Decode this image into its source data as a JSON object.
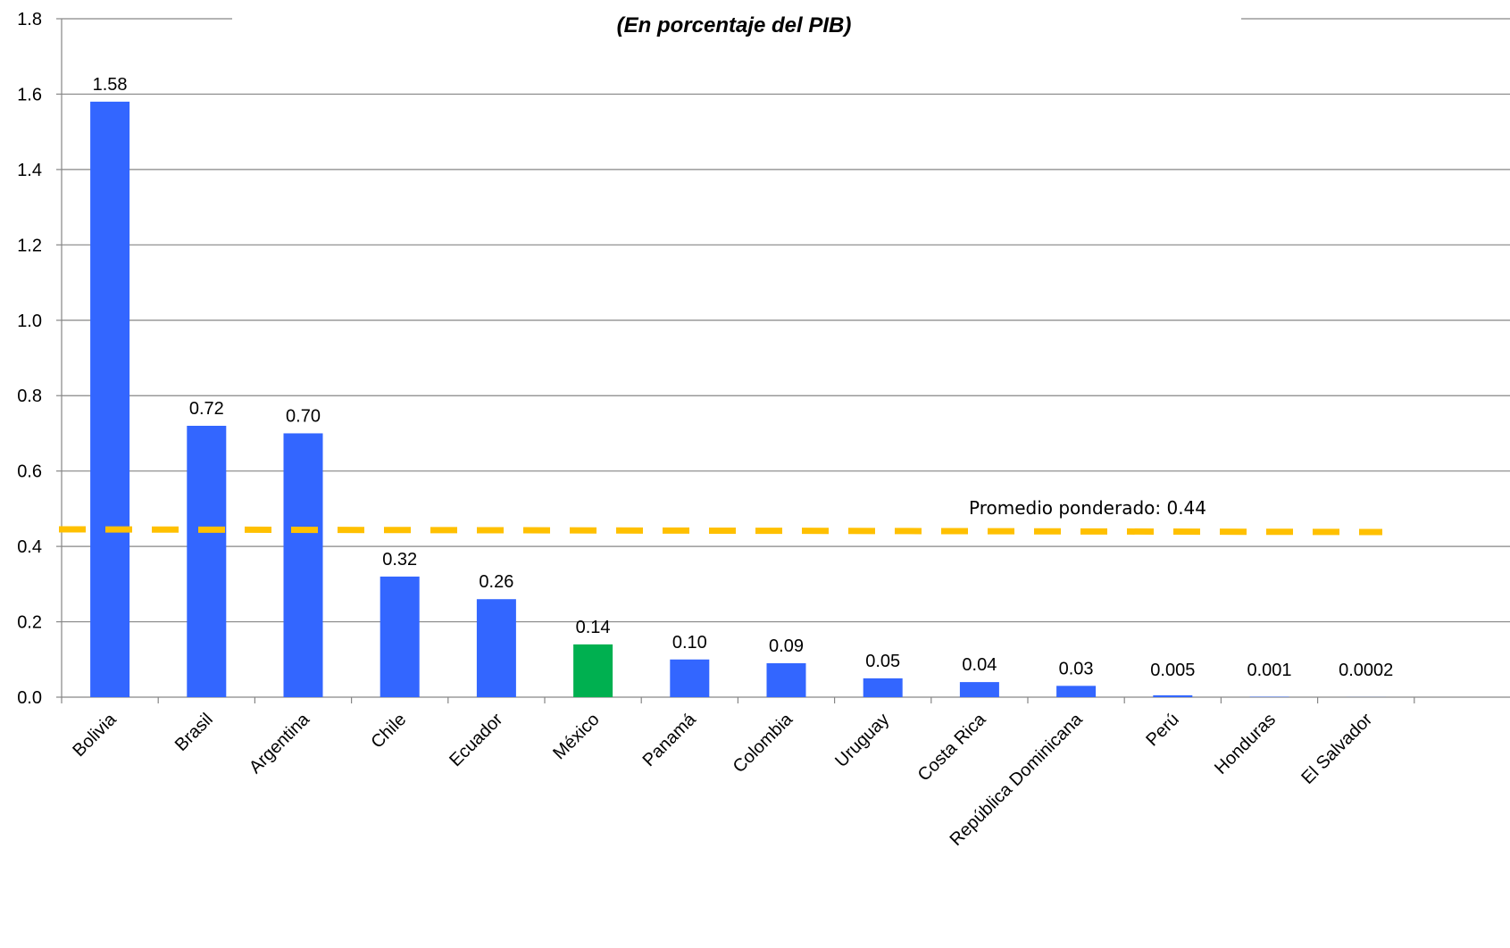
{
  "chart_data": {
    "type": "bar",
    "title": "(En porcentaje del PIB)",
    "xlabel": "",
    "ylabel": "",
    "ylim": [
      0,
      1.8
    ],
    "yticks": [
      "0.0",
      "0.2",
      "0.4",
      "0.6",
      "0.8",
      "1.0",
      "1.2",
      "1.4",
      "1.6",
      "1.8"
    ],
    "grid": true,
    "categories": [
      "Bolivia",
      "Brasil",
      "Argentina",
      "Chile",
      "Ecuador",
      "México",
      "Panamá",
      "Colombia",
      "Uruguay",
      "Costa Rica",
      "República Dominicana",
      "Perú",
      "Honduras",
      "El Salvador"
    ],
    "values": [
      1.58,
      0.72,
      0.7,
      0.32,
      0.26,
      0.14,
      0.1,
      0.09,
      0.05,
      0.04,
      0.03,
      0.005,
      0.001,
      0.0002
    ],
    "value_labels": [
      "1.58",
      "0.72",
      "0.70",
      "0.32",
      "0.26",
      "0.14",
      "0.10",
      "0.09",
      "0.05",
      "0.04",
      "0.03",
      "0.005",
      "0.001",
      "0.0002"
    ],
    "bar_colors": [
      "#3366ff",
      "#3366ff",
      "#3366ff",
      "#3366ff",
      "#3366ff",
      "#00b050",
      "#3366ff",
      "#3366ff",
      "#3366ff",
      "#3366ff",
      "#3366ff",
      "#3366ff",
      "#3366ff",
      "#3366ff"
    ],
    "reference_line": {
      "value": 0.44,
      "label": "Promedio ponderado: 0.44",
      "color": "#ffc000",
      "style": "dashed"
    }
  }
}
